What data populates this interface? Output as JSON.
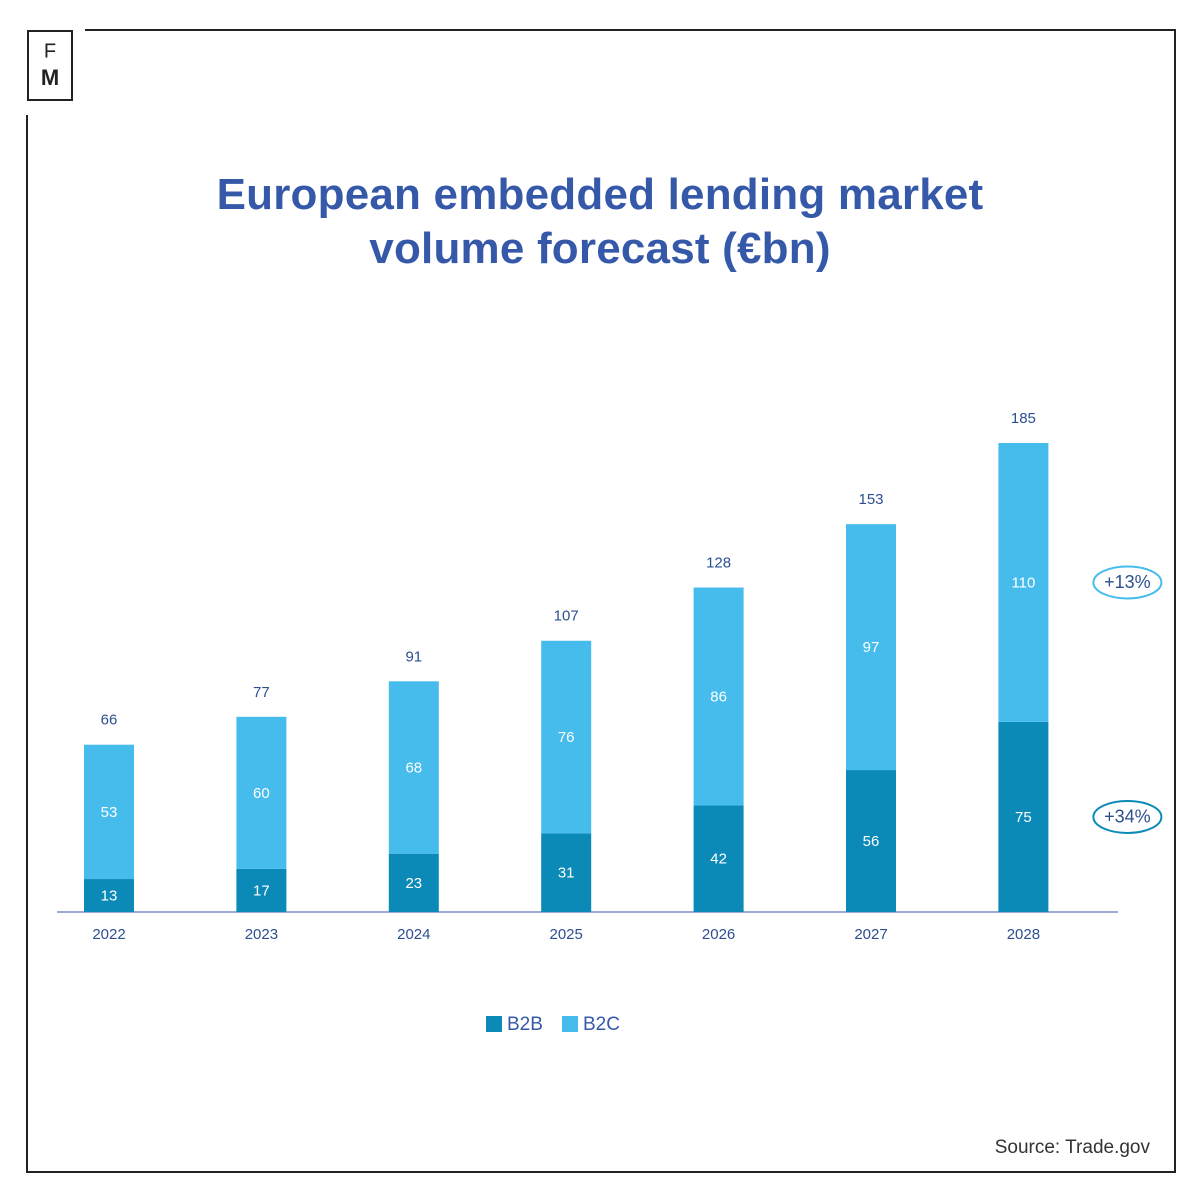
{
  "brand": {
    "top": "F",
    "bottom": "M"
  },
  "chart_data": {
    "type": "stacked-bar",
    "title": "European embedded lending market volume forecast (€bn)",
    "categories": [
      "2022",
      "2023",
      "2024",
      "2025",
      "2026",
      "2027",
      "2028"
    ],
    "series": [
      {
        "name": "B2B",
        "color": "#0b8ab8",
        "values": [
          13,
          17,
          23,
          31,
          42,
          56,
          75
        ]
      },
      {
        "name": "B2C",
        "color": "#45bcec",
        "values": [
          53,
          60,
          68,
          76,
          86,
          97,
          110
        ]
      }
    ],
    "totals": [
      66,
      77,
      91,
      107,
      128,
      153,
      185
    ],
    "annotations": [
      "+13%",
      "+34%"
    ],
    "source": "Source: Trade.gov"
  }
}
